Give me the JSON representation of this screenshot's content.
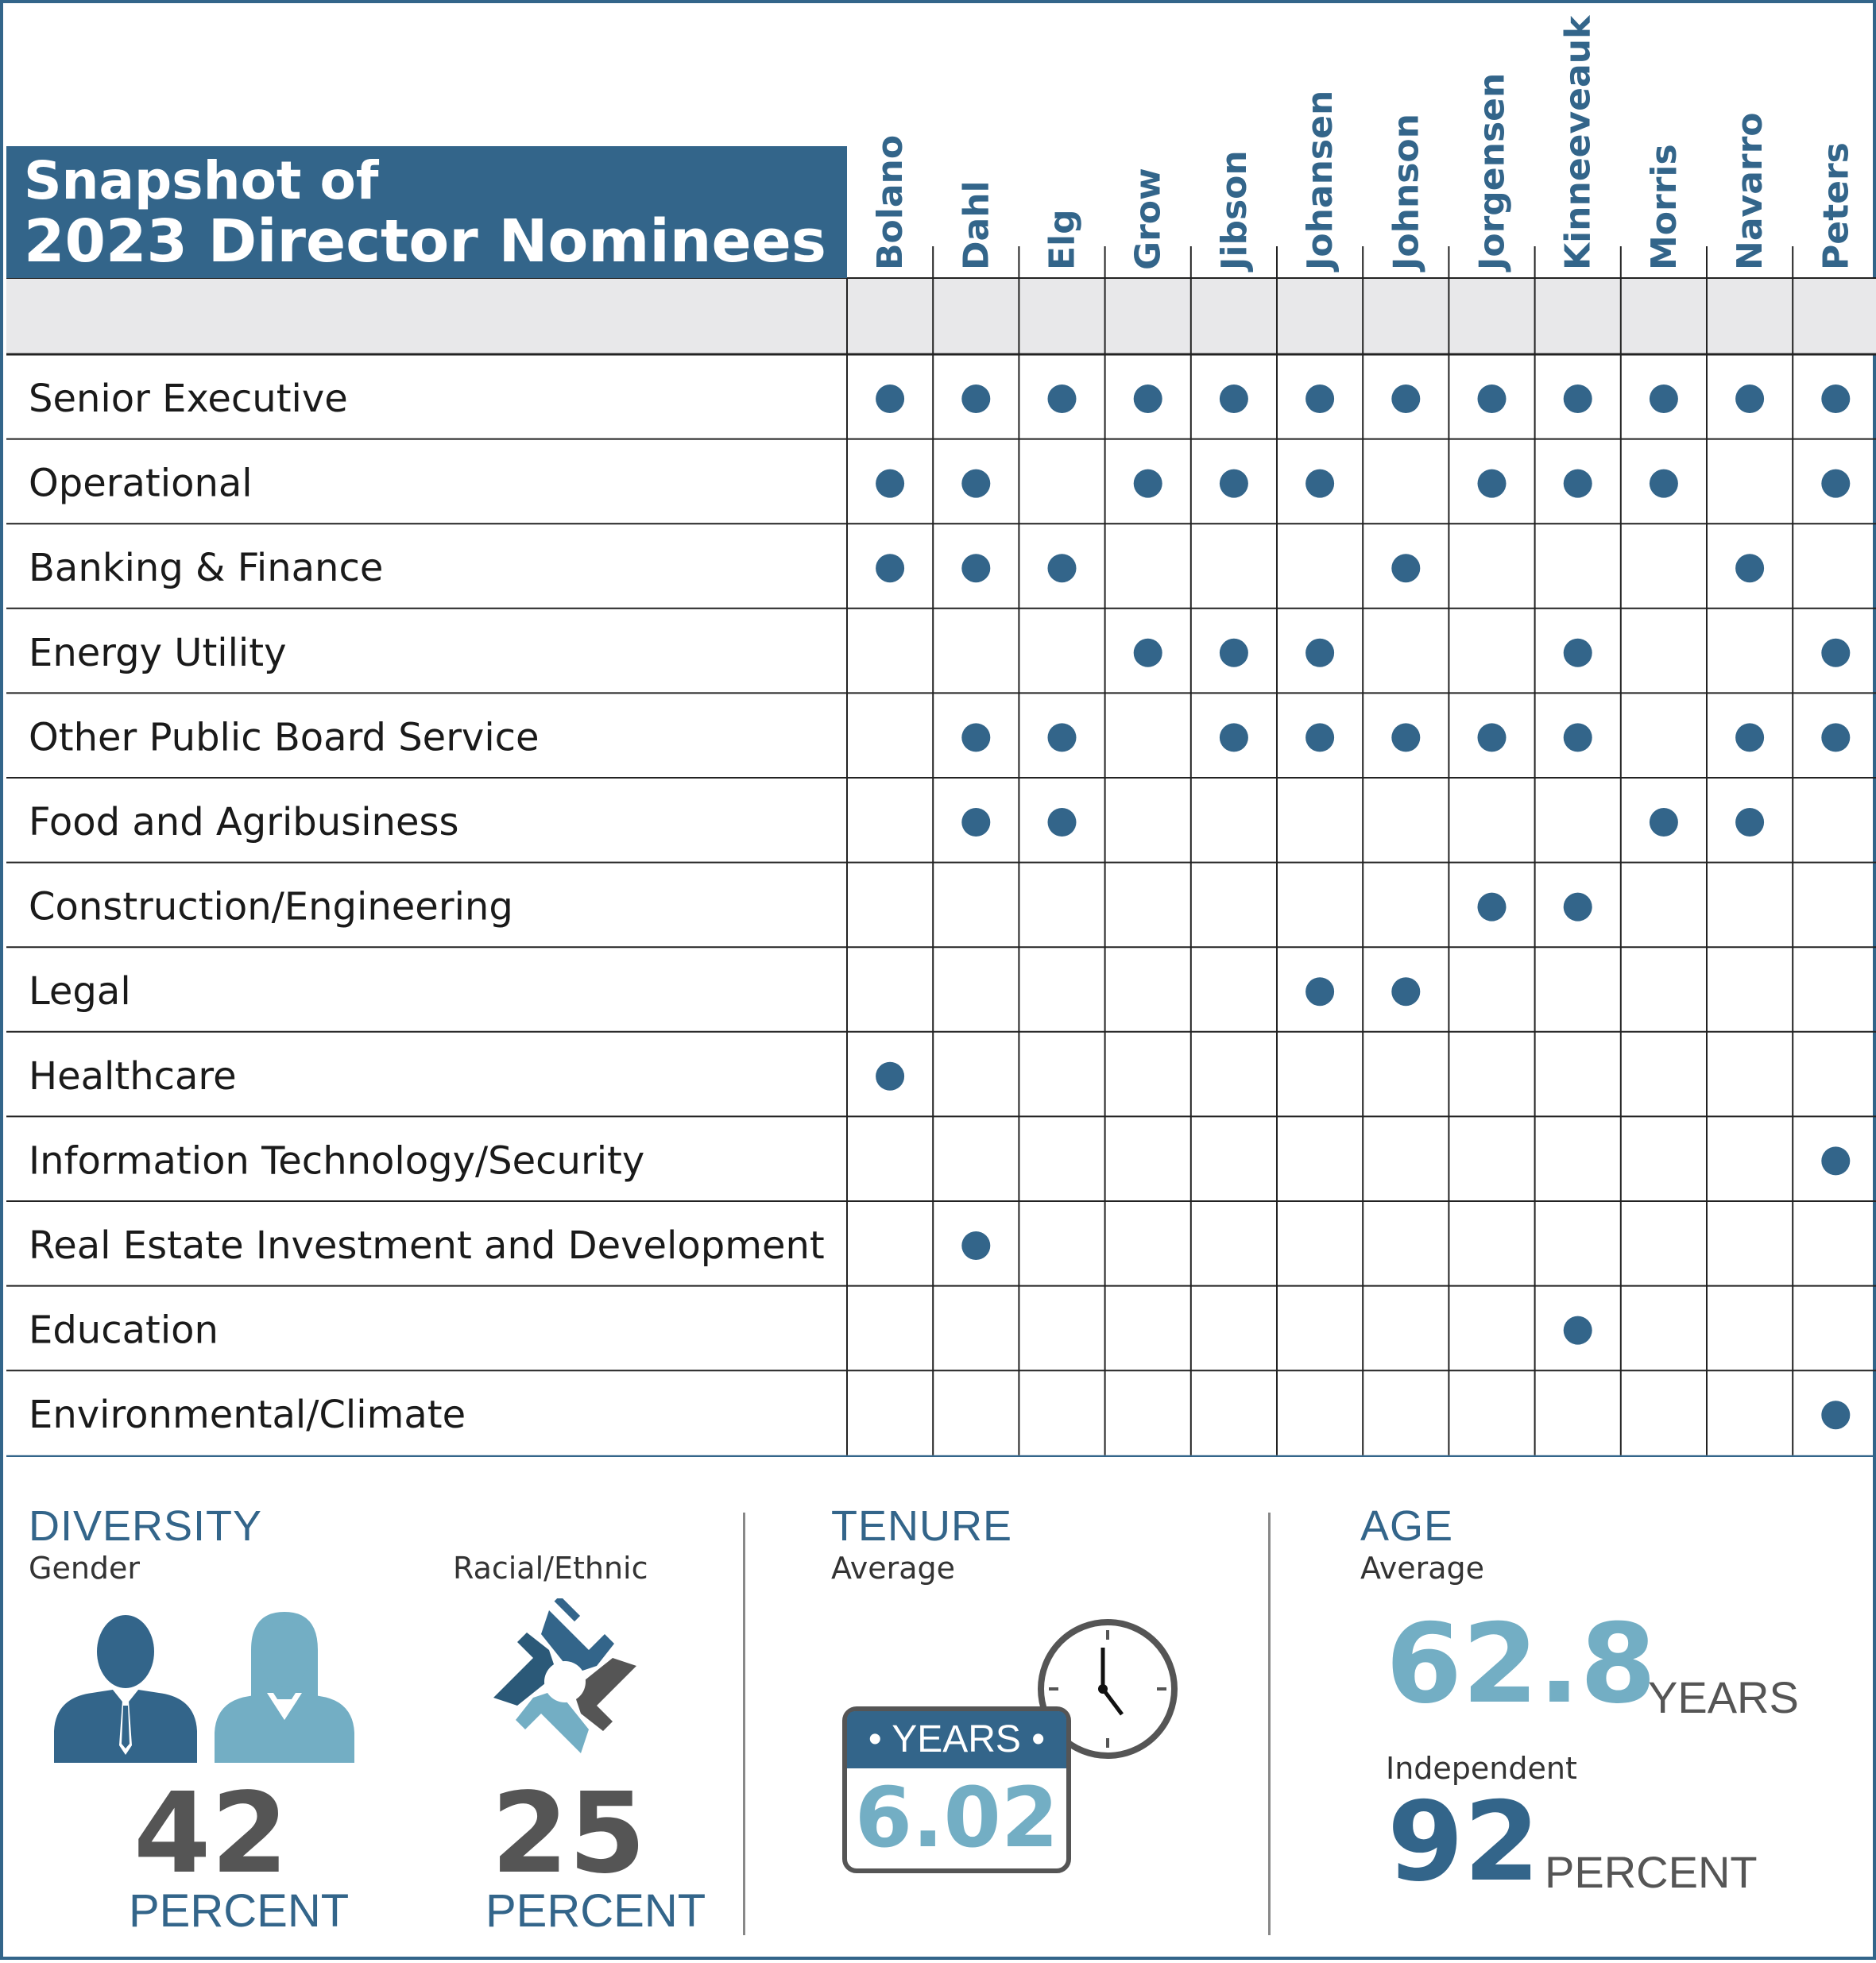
{
  "title": {
    "line1": "Snapshot of",
    "line2": "2023 Director Nominees"
  },
  "colors": {
    "primary": "#33658a",
    "light": "#73aec4",
    "dark_gray": "#555555",
    "band": "#e8e8ea"
  },
  "chart_data": {
    "type": "table",
    "columns": [
      "Bolano",
      "Dahl",
      "Elg",
      "Grow",
      "Jibson",
      "Johansen",
      "Johnson",
      "Jorgensen",
      "Kinneeveauk",
      "Morris",
      "Navarro",
      "Peters"
    ],
    "rows": [
      {
        "label": "Senior Executive",
        "marks": [
          1,
          1,
          1,
          1,
          1,
          1,
          1,
          1,
          1,
          1,
          1,
          1
        ]
      },
      {
        "label": "Operational",
        "marks": [
          1,
          1,
          0,
          1,
          1,
          1,
          0,
          1,
          1,
          1,
          0,
          1
        ]
      },
      {
        "label": "Banking & Finance",
        "marks": [
          1,
          1,
          1,
          0,
          0,
          0,
          1,
          0,
          0,
          0,
          1,
          0
        ]
      },
      {
        "label": "Energy Utility",
        "marks": [
          0,
          0,
          0,
          1,
          1,
          1,
          0,
          0,
          1,
          0,
          0,
          1
        ]
      },
      {
        "label": "Other Public Board Service",
        "marks": [
          0,
          1,
          1,
          0,
          1,
          1,
          1,
          1,
          1,
          0,
          1,
          1
        ]
      },
      {
        "label": "Food and Agribusiness",
        "marks": [
          0,
          1,
          1,
          0,
          0,
          0,
          0,
          0,
          0,
          1,
          1,
          0
        ]
      },
      {
        "label": "Construction/Engineering",
        "marks": [
          0,
          0,
          0,
          0,
          0,
          0,
          0,
          1,
          1,
          0,
          0,
          0
        ]
      },
      {
        "label": "Legal",
        "marks": [
          0,
          0,
          0,
          0,
          0,
          1,
          1,
          0,
          0,
          0,
          0,
          0
        ]
      },
      {
        "label": "Healthcare",
        "marks": [
          1,
          0,
          0,
          0,
          0,
          0,
          0,
          0,
          0,
          0,
          0,
          0
        ]
      },
      {
        "label": "Information Technology/Security",
        "marks": [
          0,
          0,
          0,
          0,
          0,
          0,
          0,
          0,
          0,
          0,
          0,
          1
        ]
      },
      {
        "label": "Real Estate Investment and Development",
        "marks": [
          0,
          1,
          0,
          0,
          0,
          0,
          0,
          0,
          0,
          0,
          0,
          0
        ]
      },
      {
        "label": "Education",
        "marks": [
          0,
          0,
          0,
          0,
          0,
          0,
          0,
          0,
          1,
          0,
          0,
          0
        ]
      },
      {
        "label": "Environmental/Climate",
        "marks": [
          0,
          0,
          0,
          0,
          0,
          0,
          0,
          0,
          0,
          0,
          0,
          1
        ]
      }
    ]
  },
  "stats": {
    "diversity": {
      "title": "DIVERSITY",
      "gender": {
        "label": "Gender",
        "value": "42",
        "unit": "PERCENT"
      },
      "racial": {
        "label": "Racial/Ethnic",
        "value": "25",
        "unit": "PERCENT"
      }
    },
    "tenure": {
      "title": "TENURE",
      "sub": "Average",
      "badge": "• YEARS •",
      "value": "6.02"
    },
    "age": {
      "title": "AGE",
      "sub": "Average",
      "value": "62.8",
      "unit": "YEARS",
      "independent": {
        "label": "Independent",
        "value": "92",
        "unit": "PERCENT"
      }
    }
  }
}
